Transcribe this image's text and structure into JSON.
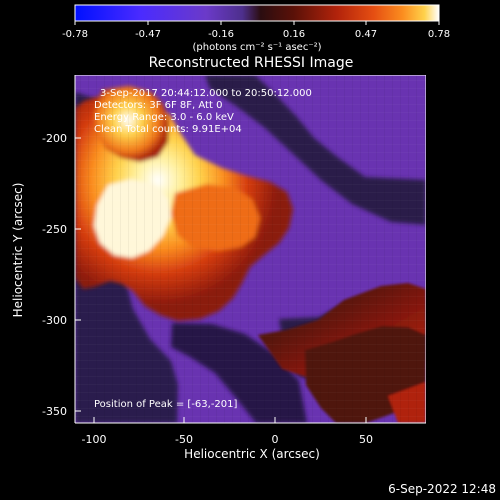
{
  "colorbar": {
    "ticks": [
      "-0.78",
      "-0.47",
      "-0.16",
      "0.16",
      "0.47",
      "0.78"
    ],
    "unit_label": "(photons cm⁻² s⁻¹ asec⁻²)",
    "colormap": [
      "#0010ff",
      "#4a2bff",
      "#6b3ac9",
      "#4d2f8c",
      "#2b0d10",
      "#5a1108",
      "#b2230b",
      "#e54e12",
      "#fb8d1f",
      "#ffd24b",
      "#ffffff"
    ]
  },
  "image": {
    "title": "Reconstructed RHESSI Image",
    "overlay_lines": [
      "3-Sep-2017 20:44:12.000 to 20:50:12.000",
      "Detectors: 3F 6F 8F, Att 0",
      "Energy Range: 3.0 - 6.0 keV",
      "Clean      Total counts: 9.91E+04"
    ],
    "peak_text": "Position of Peak = [-63,-201]",
    "xlabel": "Heliocentric X (arcsec)",
    "ylabel": "Heliocentric Y (arcsec)",
    "xticks": [
      "-100",
      "-50",
      "0",
      "50"
    ],
    "yticks": [
      "-200",
      "-250",
      "-300",
      "-350"
    ],
    "footer_timestamp": "6-Sep-2022 12:48"
  }
}
